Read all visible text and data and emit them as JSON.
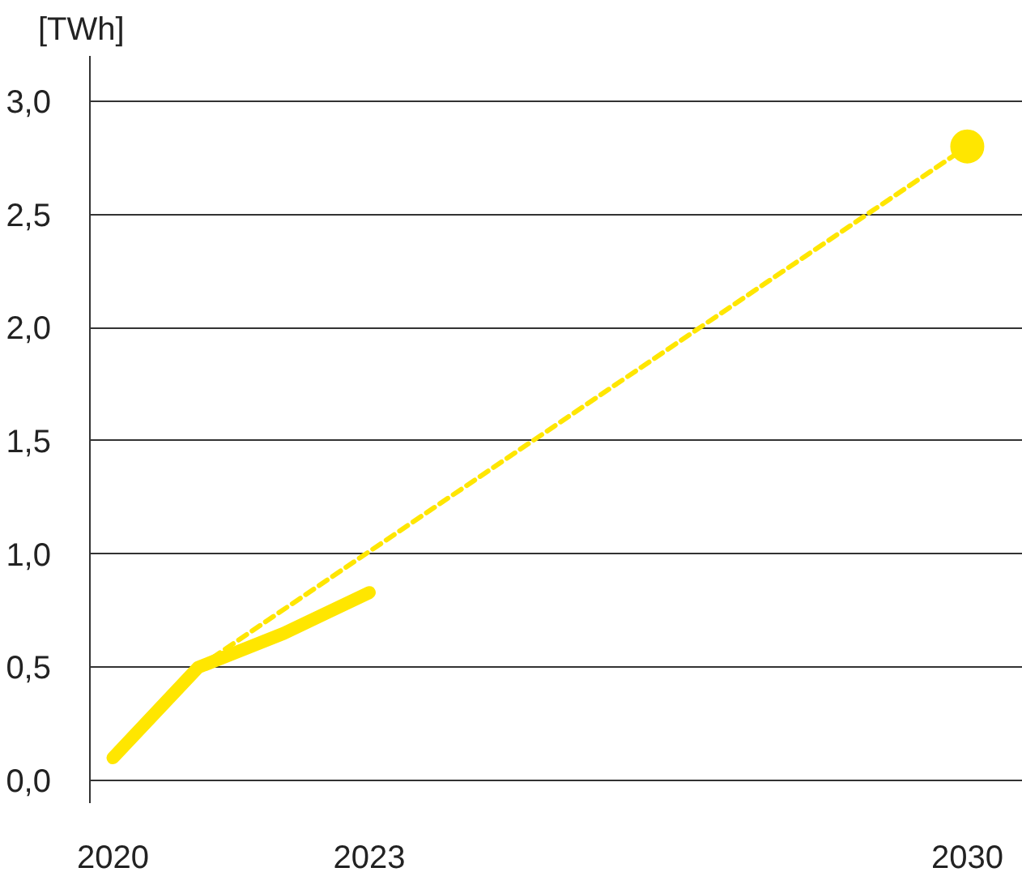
{
  "chart_data": {
    "type": "line",
    "ylabel": "[TWh]",
    "xlim": [
      2019.73,
      2030.65
    ],
    "xticks": [
      2020,
      2023,
      2030
    ],
    "ylim": [
      -0.1,
      3.2
    ],
    "yticks": [
      {
        "value": 0,
        "label": "0,0"
      },
      {
        "value": 0.5,
        "label": "0,5"
      },
      {
        "value": 1.0,
        "label": "1,0"
      },
      {
        "value": 1.5,
        "label": "1,5"
      },
      {
        "value": 2.0,
        "label": "2,0"
      },
      {
        "value": 2.5,
        "label": "2,5"
      },
      {
        "value": 3.0,
        "label": "3,0"
      }
    ],
    "grid": "y",
    "series": [
      {
        "line_style": "dashed",
        "marker": "none",
        "color": "#ffe600",
        "x": [
          2021,
          2030
        ],
        "values": [
          0.5,
          2.8
        ]
      },
      {
        "type": "scatter",
        "marker": "circle",
        "color": "#ffe600",
        "x": [
          2030
        ],
        "values": [
          2.8
        ]
      },
      {
        "line_style": "solid",
        "marker": "none",
        "color": "#ffe600",
        "x": [
          2020,
          2021,
          2022,
          2023
        ],
        "values": [
          0.1,
          0.5,
          0.65,
          0.83
        ]
      }
    ]
  }
}
